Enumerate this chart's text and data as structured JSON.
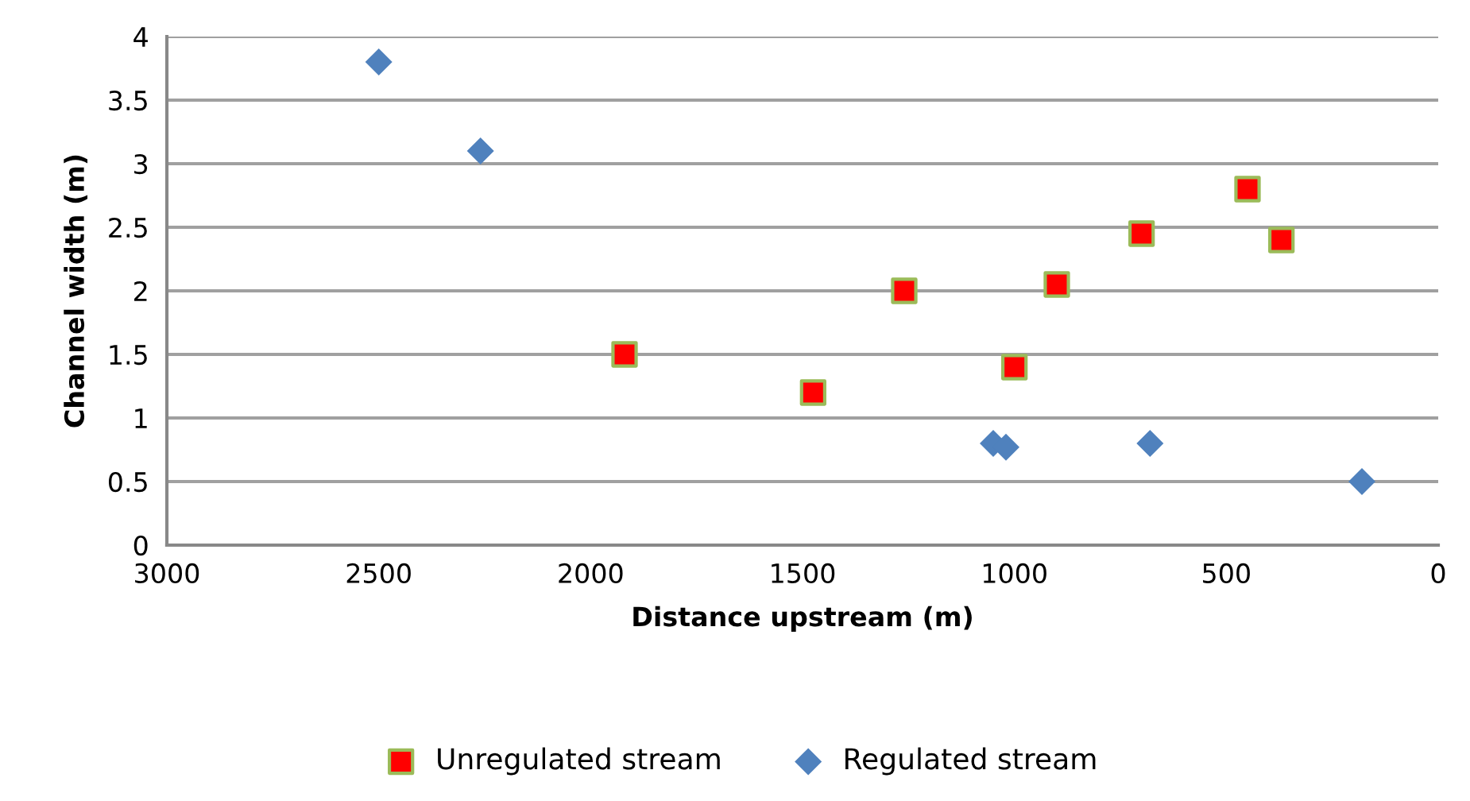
{
  "chart_data": {
    "type": "scatter",
    "xlabel": "Distance upstream (m)",
    "ylabel": "Channel width (m)",
    "xlim": [
      3000,
      0
    ],
    "xticks": [
      3000,
      2500,
      2000,
      1500,
      1000,
      500,
      0
    ],
    "ylim": [
      0,
      4
    ],
    "yticks": [
      0,
      0.5,
      1,
      1.5,
      2,
      2.5,
      3,
      3.5,
      4
    ],
    "grid": "y",
    "legend": "bottom",
    "series": [
      {
        "name": "Unregulated stream",
        "color": "#ff0000",
        "marker": "square",
        "x": [
          1920,
          1475,
          1260,
          1000,
          900,
          700,
          450,
          370
        ],
        "values": [
          1.5,
          1.2,
          2.0,
          1.4,
          2.05,
          2.45,
          2.8,
          2.4
        ]
      },
      {
        "name": "Regulated stream",
        "color": "#4f81bd",
        "marker": "diamond",
        "x": [
          2500,
          2260,
          1050,
          1020,
          680,
          180
        ],
        "values": [
          3.8,
          3.1,
          0.8,
          0.77,
          0.8,
          0.5
        ]
      }
    ]
  }
}
